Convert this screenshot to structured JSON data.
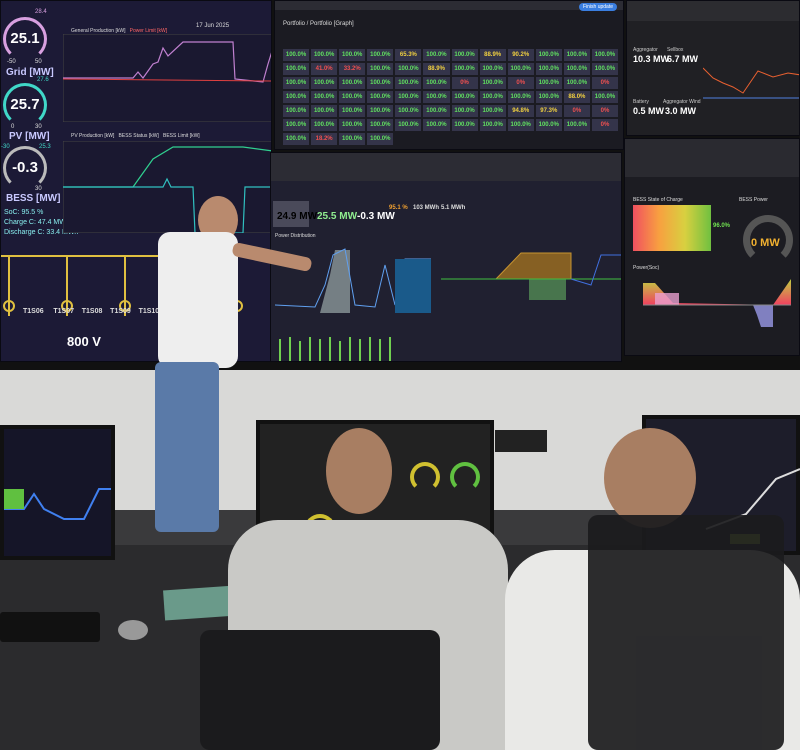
{
  "left_screen": {
    "gauges": [
      {
        "label": "Grid [MW]",
        "value": "25.1",
        "min": "-50",
        "max": "50",
        "peak": "28.4",
        "color": "#d8a0e0"
      },
      {
        "label": "PV [MW]",
        "value": "25.7",
        "min": "0",
        "max": "30",
        "peak": "27.6",
        "color": "#40d8c8"
      },
      {
        "label": "BESS [MW]",
        "value": "-0.3",
        "min": "-30",
        "max": "30",
        "peak": "25.3",
        "color": "#aaaaaa"
      }
    ],
    "stats": [
      {
        "label": "SoC:",
        "value": "95.5 %"
      },
      {
        "label": "Charge C:",
        "value": "47.4 MWh"
      },
      {
        "label": "Discharge C:",
        "value": "33.4 MWh"
      }
    ],
    "date": "17 Jun 2025",
    "chart1_legend": [
      "General Production [kW]",
      "Power Limit [kW]"
    ],
    "chart2_legend": [
      "PV Production [kW]",
      "BESS Status [kW]",
      "BESS Limit [kW]"
    ],
    "transformers": [
      "T1S06",
      "T1S07",
      "T1S08",
      "T1S09",
      "T1S10"
    ],
    "voltage": "800 V"
  },
  "portfolio": {
    "title": "Portfolio / Portfolio [Graph]",
    "update_button": "Finish update",
    "cells": [
      [
        "100.0%",
        "100.0%",
        "100.0%",
        "100.0%",
        "65.3%",
        "100.0%",
        "100.0%",
        "88.9%",
        "90.2%",
        "100.0%",
        "100.0%",
        "100.0%"
      ],
      [
        "100.0%",
        "41.0%",
        "33.2%",
        "100.0%",
        "100.0%",
        "88.9%",
        "100.0%",
        "100.0%",
        "100.0%",
        "100.0%",
        "100.0%",
        "100.0%"
      ],
      [
        "100.0%",
        "100.0%",
        "100.0%",
        "100.0%",
        "100.0%",
        "100.0%",
        "0%",
        "100.0%",
        "0%",
        "100.0%",
        "100.0%",
        "0%"
      ],
      [
        "100.0%",
        "100.0%",
        "100.0%",
        "100.0%",
        "100.0%",
        "100.0%",
        "100.0%",
        "100.0%",
        "100.0%",
        "100.0%",
        "88.0%",
        "100.0%"
      ],
      [
        "100.0%",
        "100.0%",
        "100.0%",
        "100.0%",
        "100.0%",
        "100.0%",
        "100.0%",
        "100.0%",
        "94.8%",
        "97.3%",
        "0%",
        "0%"
      ],
      [
        "100.0%",
        "100.0%",
        "100.0%",
        "100.0%",
        "100.0%",
        "100.0%",
        "100.0%",
        "100.0%",
        "100.0%",
        "100.0%",
        "100.0%",
        "0%"
      ],
      [
        "100.0%",
        "18.2%",
        "100.0%",
        "100.0%"
      ]
    ]
  },
  "aggregate": {
    "values": [
      {
        "label": "Aggregator",
        "value": "10.3 MW"
      },
      {
        "label": "Sellbox",
        "value": "6.7 MW"
      },
      {
        "label": "Battery",
        "value": "0.5 MW"
      },
      {
        "label": "Aggregator Wind",
        "value": "3.0 MW"
      }
    ]
  },
  "center": {
    "kpis": [
      {
        "value": "24.9 MW",
        "color": "#ffffff"
      },
      {
        "value": "25.5 MW",
        "color": "#90ee90"
      },
      {
        "value": "-0.3 MW",
        "color": "#ffffff"
      },
      {
        "value": "95.1 %",
        "color": "#f0a030"
      },
      {
        "value": "103 MWh",
        "color": "#dddddd"
      },
      {
        "value": "5.1 MWh",
        "color": "#dddddd"
      }
    ],
    "section": "Power Distribution"
  },
  "bess": {
    "soc_title": "BESS State of Charge",
    "soc_value": "96.0%",
    "soc_fraction": 0.96,
    "power_title": "BESS Power",
    "power_value": "0 MW",
    "power_chart": "Power(Soc)"
  }
}
